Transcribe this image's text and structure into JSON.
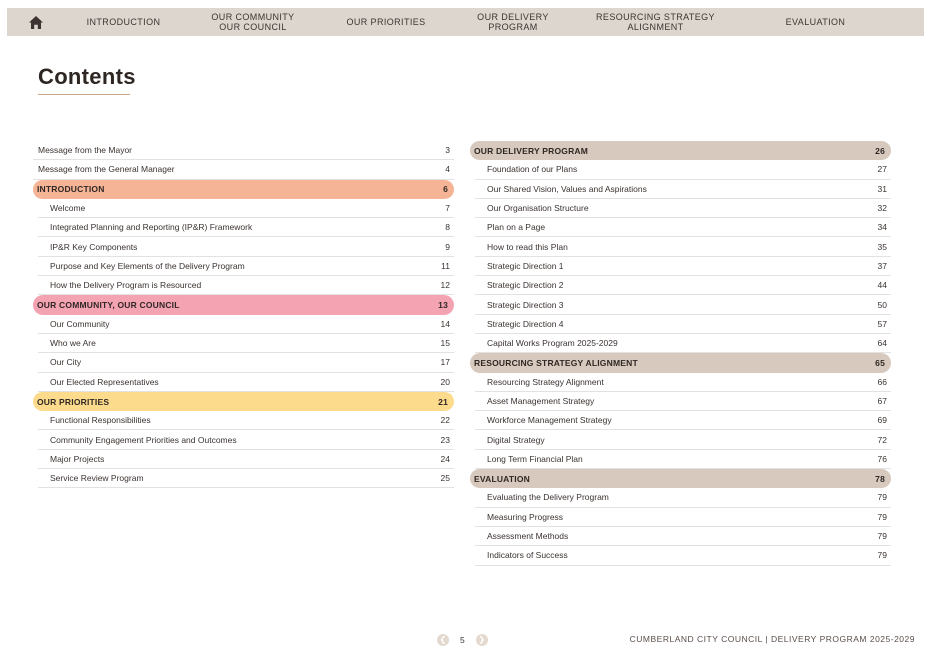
{
  "nav": {
    "items": [
      {
        "label": "INTRODUCTION",
        "width": 0
      },
      {
        "label": "OUR COMMUNITY\nOUR COUNCIL"
      },
      {
        "label": "OUR PRIORITIES"
      },
      {
        "label": "OUR DELIVERY\nPROGRAM"
      },
      {
        "label": "RESOURCING STRATEGY\nALIGNMENT"
      },
      {
        "label": "EVALUATION"
      }
    ]
  },
  "page_title": "Contents",
  "toc_left": [
    {
      "label": "Message from the Mayor",
      "page": "3",
      "kind": "top"
    },
    {
      "label": "Message from the General Manager",
      "page": "4",
      "kind": "top"
    },
    {
      "label": "INTRODUCTION",
      "page": "6",
      "kind": "head",
      "color": "#f5b496"
    },
    {
      "label": "Welcome",
      "page": "7",
      "kind": "sub"
    },
    {
      "label": "Integrated Planning and Reporting (IP&R) Framework",
      "page": "8",
      "kind": "sub"
    },
    {
      "label": "IP&R Key Components",
      "page": "9",
      "kind": "sub"
    },
    {
      "label": "Purpose and Key Elements of the Delivery Program",
      "page": "11",
      "kind": "sub"
    },
    {
      "label": "How the Delivery Program is Resourced",
      "page": "12",
      "kind": "sub"
    },
    {
      "label": "OUR COMMUNITY, OUR COUNCIL",
      "page": "13",
      "kind": "head",
      "color": "#f4a3b3"
    },
    {
      "label": "Our Community",
      "page": "14",
      "kind": "sub"
    },
    {
      "label": "Who we Are",
      "page": "15",
      "kind": "sub"
    },
    {
      "label": "Our City",
      "page": "17",
      "kind": "sub"
    },
    {
      "label": "Our Elected Representatives",
      "page": "20",
      "kind": "sub"
    },
    {
      "label": "OUR PRIORITIES",
      "page": "21",
      "kind": "head",
      "color": "#fcdc8c"
    },
    {
      "label": "Functional Responsibilities",
      "page": "22",
      "kind": "sub"
    },
    {
      "label": "Community Engagement Priorities and Outcomes",
      "page": "23",
      "kind": "sub"
    },
    {
      "label": "Major Projects",
      "page": "24",
      "kind": "sub"
    },
    {
      "label": "Service Review Program",
      "page": "25",
      "kind": "sub"
    }
  ],
  "toc_right": [
    {
      "label": "OUR DELIVERY PROGRAM",
      "page": "26",
      "kind": "head",
      "color": "#d7c9bd"
    },
    {
      "label": "Foundation of our Plans",
      "page": "27",
      "kind": "sub"
    },
    {
      "label": "Our Shared Vision, Values and Aspirations",
      "page": "31",
      "kind": "sub"
    },
    {
      "label": "Our Organisation Structure",
      "page": "32",
      "kind": "sub"
    },
    {
      "label": "Plan on a Page",
      "page": "34",
      "kind": "sub"
    },
    {
      "label": "How to read this Plan",
      "page": "35",
      "kind": "sub"
    },
    {
      "label": "Strategic Direction 1",
      "page": "37",
      "kind": "sub"
    },
    {
      "label": "Strategic Direction 2",
      "page": "44",
      "kind": "sub"
    },
    {
      "label": "Strategic Direction 3",
      "page": "50",
      "kind": "sub"
    },
    {
      "label": "Strategic Direction 4",
      "page": "57",
      "kind": "sub"
    },
    {
      "label": "Capital Works Program 2025-2029",
      "page": "64",
      "kind": "sub"
    },
    {
      "label": "RESOURCING STRATEGY ALIGNMENT",
      "page": "65",
      "kind": "head",
      "color": "#d7c9bd"
    },
    {
      "label": "Resourcing Strategy Alignment",
      "page": "66",
      "kind": "sub"
    },
    {
      "label": "Asset Management Strategy",
      "page": "67",
      "kind": "sub"
    },
    {
      "label": "Workforce Management Strategy",
      "page": "69",
      "kind": "sub"
    },
    {
      "label": "Digital Strategy",
      "page": "72",
      "kind": "sub"
    },
    {
      "label": "Long Term Financial Plan",
      "page": "76",
      "kind": "sub"
    },
    {
      "label": "EVALUATION",
      "page": "78",
      "kind": "head",
      "color": "#d7c9bd"
    },
    {
      "label": "Evaluating the Delivery Program",
      "page": "79",
      "kind": "sub"
    },
    {
      "label": "Measuring Progress",
      "page": "79",
      "kind": "sub"
    },
    {
      "label": "Assessment Methods",
      "page": "79",
      "kind": "sub"
    },
    {
      "label": "Indicators of Success",
      "page": "79",
      "kind": "sub"
    }
  ],
  "footer": {
    "page_number": "5",
    "prev_icon": "chevron-left-icon",
    "next_icon": "chevron-right-icon",
    "text": "CUMBERLAND CITY COUNCIL  |  DELIVERY PROGRAM 2025-2029"
  }
}
